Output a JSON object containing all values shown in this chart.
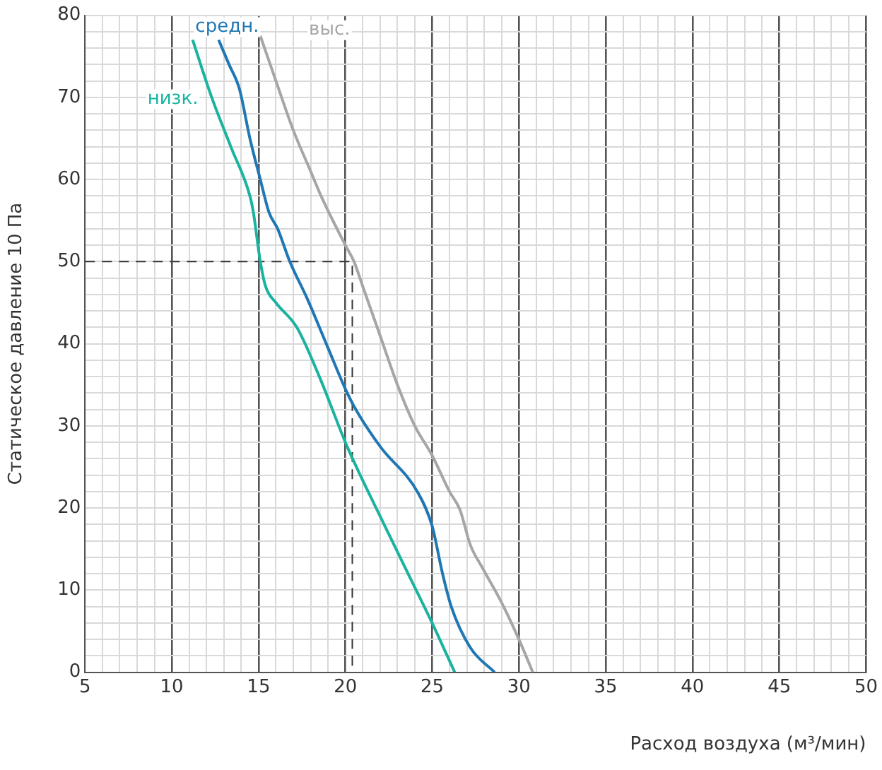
{
  "chart_data": {
    "type": "line",
    "xlabel": "Расход воздуха (м³/мин)",
    "ylabel": "Статическое давление 10 Па",
    "xlim": [
      5,
      50
    ],
    "ylim": [
      0,
      80
    ],
    "xticks": [
      5,
      {
        "value": 6,
        "label": null
      },
      {
        "value": 7,
        "label": null
      },
      {
        "value": 8,
        "label": null
      },
      {
        "value": 9,
        "label": null
      },
      10,
      {
        "value": 11,
        "label": null
      },
      {
        "value": 12,
        "label": null
      },
      {
        "value": 13,
        "label": null
      },
      {
        "value": 14,
        "label": null
      },
      15,
      {
        "value": 16,
        "label": null
      },
      {
        "value": 17,
        "label": null
      },
      {
        "value": 18,
        "label": null
      },
      {
        "value": 19,
        "label": null
      },
      20,
      {
        "value": 21,
        "label": null
      },
      {
        "value": 22,
        "label": null
      },
      {
        "value": 23,
        "label": null
      },
      {
        "value": 24,
        "label": null
      },
      25,
      {
        "value": 26,
        "label": null
      },
      {
        "value": 27,
        "label": null
      },
      {
        "value": 28,
        "label": null
      },
      {
        "value": 29,
        "label": null
      },
      30,
      {
        "value": 31,
        "label": null
      },
      {
        "value": 32,
        "label": null
      },
      {
        "value": 33,
        "label": null
      },
      {
        "value": 34,
        "label": null
      },
      35,
      {
        "value": 36,
        "label": null
      },
      {
        "value": 37,
        "label": null
      },
      {
        "value": 38,
        "label": null
      },
      {
        "value": 39,
        "label": null
      },
      40,
      {
        "value": 41,
        "label": null
      },
      {
        "value": 42,
        "label": null
      },
      {
        "value": 43,
        "label": null
      },
      {
        "value": 44,
        "label": null
      },
      45,
      {
        "value": 46,
        "label": null
      },
      {
        "value": 47,
        "label": null
      },
      {
        "value": 48,
        "label": null
      },
      {
        "value": 49,
        "label": null
      },
      50
    ],
    "yticks": [
      0,
      {
        "value": 2,
        "label": null
      },
      {
        "value": 4,
        "label": null
      },
      {
        "value": 6,
        "label": null
      },
      {
        "value": 8,
        "label": null
      },
      10,
      {
        "value": 12,
        "label": null
      },
      {
        "value": 14,
        "label": null
      },
      {
        "value": 16,
        "label": null
      },
      {
        "value": 18,
        "label": null
      },
      20,
      {
        "value": 22,
        "label": null
      },
      {
        "value": 24,
        "label": null
      },
      {
        "value": 26,
        "label": null
      },
      {
        "value": 28,
        "label": null
      },
      30,
      {
        "value": 32,
        "label": null
      },
      {
        "value": 34,
        "label": null
      },
      {
        "value": 36,
        "label": null
      },
      {
        "value": 38,
        "label": null
      },
      40,
      {
        "value": 42,
        "label": null
      },
      {
        "value": 44,
        "label": null
      },
      {
        "value": 46,
        "label": null
      },
      {
        "value": 48,
        "label": null
      },
      50,
      {
        "value": 52,
        "label": null
      },
      {
        "value": 54,
        "label": null
      },
      {
        "value": 56,
        "label": null
      },
      {
        "value": 58,
        "label": null
      },
      60,
      {
        "value": 62,
        "label": null
      },
      {
        "value": 64,
        "label": null
      },
      {
        "value": 66,
        "label": null
      },
      {
        "value": 68,
        "label": null
      },
      70,
      {
        "value": 72,
        "label": null
      },
      {
        "value": 74,
        "label": null
      },
      {
        "value": 76,
        "label": null
      },
      {
        "value": 78,
        "label": null
      },
      80
    ],
    "grid": true,
    "legend": false,
    "marker": "none",
    "series": [
      {
        "name": "низк.",
        "color": "#1ab3a0",
        "x": [
          11.2,
          12.3,
          13.4,
          14.5,
          14.7,
          15.1,
          15.4,
          16,
          17.2,
          18.5,
          20.1,
          22,
          23.5,
          25,
          26.3
        ],
        "values": [
          77,
          70,
          64,
          58,
          56,
          50,
          47,
          45,
          42,
          36,
          27.5,
          19,
          12.5,
          6,
          0
        ]
      },
      {
        "name": "средн.",
        "color": "#1f77b4",
        "x": [
          12.7,
          13.3,
          13.9,
          14.5,
          15.1,
          15.6,
          16.1,
          16.8,
          17.8,
          18.9,
          20,
          20.6,
          22,
          24.2,
          25,
          25.6,
          26.1,
          27.2,
          28.6
        ],
        "values": [
          77,
          74,
          71,
          65,
          60,
          56,
          54,
          50,
          45.5,
          40,
          34.5,
          32,
          27.5,
          21.8,
          17.8,
          12,
          8,
          3,
          0
        ]
      },
      {
        "name": "выс.",
        "color": "#a6a6a6",
        "x": [
          15.1,
          16,
          17,
          18,
          18.6,
          20,
          20.5,
          21,
          22,
          23,
          24,
          25,
          26,
          26.6,
          27.2,
          27.9,
          29,
          30,
          30.8
        ],
        "values": [
          77.5,
          72,
          66,
          61,
          58,
          52,
          50,
          47,
          41,
          35,
          30,
          26.4,
          22,
          19.8,
          15.5,
          12.7,
          8.5,
          4,
          0
        ]
      },
      {
        "color": "#333333",
        "line_style": "dashed",
        "x": [
          5,
          20.4,
          20.4
        ],
        "values": [
          50,
          50,
          0
        ]
      }
    ]
  }
}
